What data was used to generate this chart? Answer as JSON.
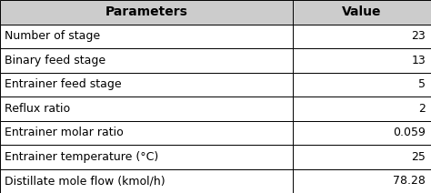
{
  "headers": [
    "Parameters",
    "Value"
  ],
  "rows": [
    [
      "Number of stage",
      "23"
    ],
    [
      "Binary feed stage",
      "13"
    ],
    [
      "Entrainer feed stage",
      "5"
    ],
    [
      "Reflux ratio",
      "2"
    ],
    [
      "Entrainer molar ratio",
      "0.059"
    ],
    [
      "Entrainer temperature (°C)",
      "25"
    ],
    [
      "Distillate mole flow (kmol/h)",
      "78.28"
    ]
  ],
  "header_bg": "#cccccc",
  "row_bg": "#ffffff",
  "text_color": "#000000",
  "header_text_color": "#000000",
  "line_color": "#000000",
  "font_size": 9.0,
  "header_font_size": 10.0,
  "col_split": 0.68,
  "fig_width": 4.74,
  "fig_height": 2.12,
  "dpi": 100,
  "watermark_color": "#cccccc",
  "watermark_alpha": 0.55
}
